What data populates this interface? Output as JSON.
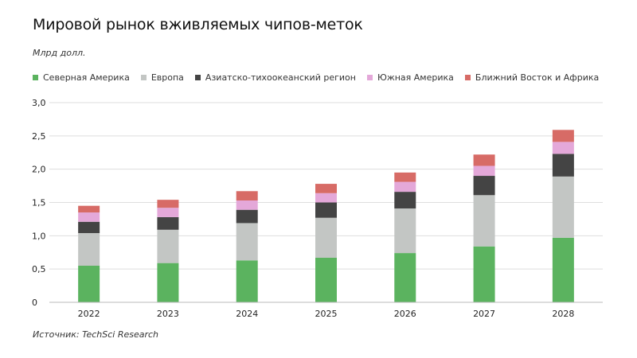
{
  "header": {
    "title": "Мировой рынок вживляемых чипов-меток",
    "unit": "Млрд долл.",
    "source": "Источник: TechSci Research"
  },
  "chart_data": {
    "type": "bar",
    "stacked": true,
    "categories": [
      "2022",
      "2023",
      "2024",
      "2025",
      "2026",
      "2027",
      "2028"
    ],
    "series": [
      {
        "name": "Северная Америка",
        "color": "#5bb35f",
        "values": [
          0.55,
          0.59,
          0.63,
          0.67,
          0.74,
          0.84,
          0.97
        ]
      },
      {
        "name": "Европа",
        "color": "#c3c6c4",
        "values": [
          0.49,
          0.5,
          0.56,
          0.6,
          0.67,
          0.77,
          0.92
        ]
      },
      {
        "name": "Азиатско-тихоокеанский регион",
        "color": "#444444",
        "values": [
          0.17,
          0.19,
          0.2,
          0.23,
          0.25,
          0.29,
          0.34
        ]
      },
      {
        "name": "Южная Америка",
        "color": "#e4a8d9",
        "values": [
          0.14,
          0.14,
          0.14,
          0.14,
          0.15,
          0.15,
          0.18
        ]
      },
      {
        "name": "Ближний Восток и Африка",
        "color": "#d76b66",
        "values": [
          0.1,
          0.12,
          0.14,
          0.14,
          0.14,
          0.17,
          0.18
        ]
      }
    ],
    "yticks": [
      "0",
      "0,5",
      "1,0",
      "1,5",
      "2,0",
      "2,5",
      "3,0"
    ],
    "ylim": [
      0,
      3.0
    ],
    "grid": true,
    "legend_position": "top"
  }
}
